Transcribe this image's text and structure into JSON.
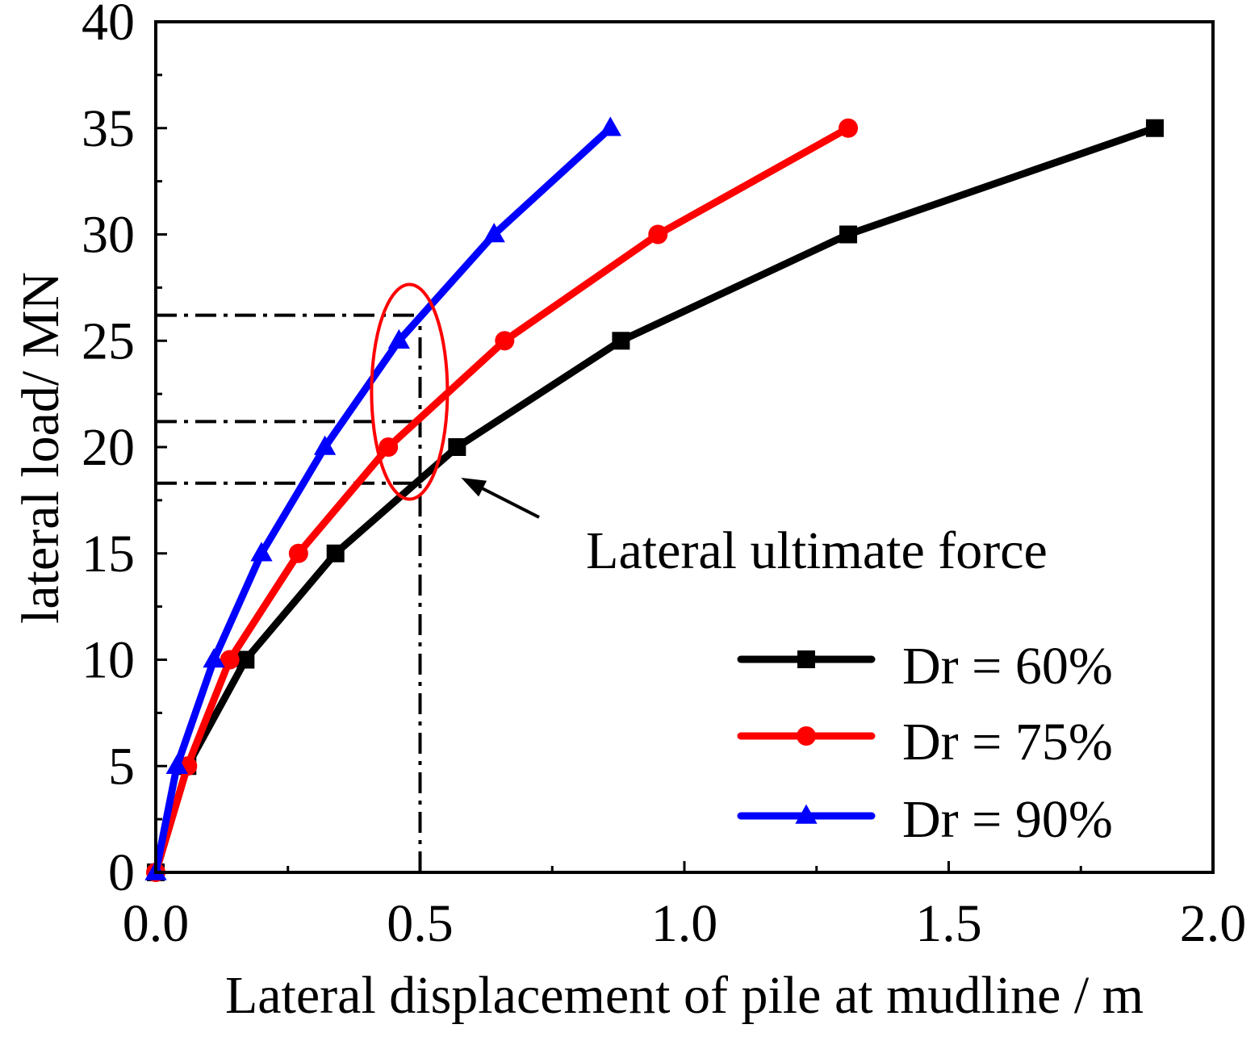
{
  "chart_data": {
    "type": "line",
    "title": "",
    "xlabel": "Lateral displacement of pile at mudline / m",
    "ylabel": "lateral load/ MN",
    "xlim": [
      0.0,
      2.0
    ],
    "ylim": [
      0,
      40
    ],
    "x_tick_labels": [
      "0.0",
      "0.5",
      "1.0",
      "1.5",
      "2.0"
    ],
    "y_tick_labels": [
      "0",
      "5",
      "10",
      "15",
      "20",
      "25",
      "30",
      "35",
      "40"
    ],
    "x_ticks": [
      0.0,
      0.5,
      1.0,
      1.5,
      2.0
    ],
    "y_ticks": [
      0,
      5,
      10,
      15,
      20,
      25,
      30,
      35,
      40
    ],
    "grid": false,
    "legend_position": "bottom-right",
    "series": [
      {
        "name": "Dr = 60%",
        "color": "#000000",
        "marker": "square",
        "x": [
          0.0,
          0.06,
          0.17,
          0.34,
          0.57,
          0.88,
          1.31,
          1.89
        ],
        "y": [
          0,
          5,
          10,
          15,
          20,
          25,
          30,
          35
        ]
      },
      {
        "name": "Dr = 75%",
        "color": "#ff0000",
        "marker": "circle",
        "x": [
          0.0,
          0.06,
          0.14,
          0.27,
          0.44,
          0.66,
          0.95,
          1.31
        ],
        "y": [
          0,
          5,
          10,
          15,
          20,
          25,
          30,
          35
        ]
      },
      {
        "name": "Dr = 90%",
        "color": "#0000ff",
        "marker": "triangle",
        "x": [
          0.0,
          0.04,
          0.11,
          0.2,
          0.32,
          0.46,
          0.64,
          0.86
        ],
        "y": [
          0,
          5,
          10,
          15,
          20,
          25,
          30,
          35
        ]
      }
    ],
    "reference_lines": {
      "x_value": 0.5,
      "y_values": [
        26.2,
        21.2,
        18.3
      ],
      "style": "dash-dot"
    },
    "annotations": [
      {
        "text": "Lateral ultimate force",
        "points_to": {
          "x": 0.57,
          "y": 18.3
        },
        "highlight_ellipse_center": {
          "x": 0.48,
          "y": 22.6
        },
        "highlight_color": "#ff0000"
      }
    ]
  }
}
